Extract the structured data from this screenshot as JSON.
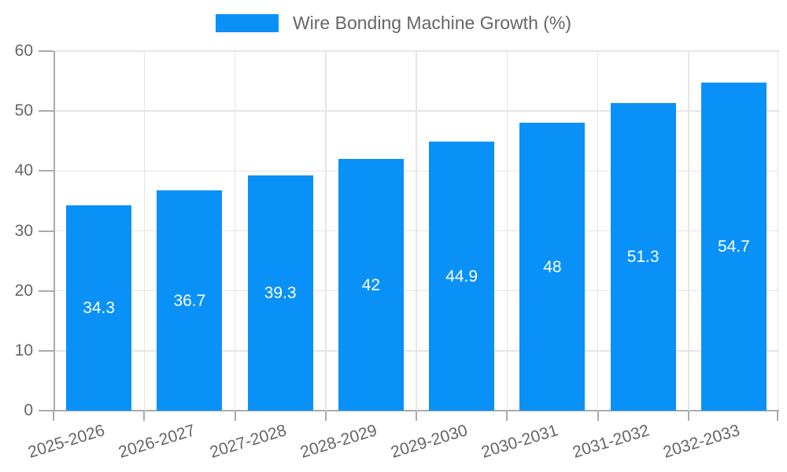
{
  "chart_data": {
    "type": "bar",
    "title": "",
    "categories": [
      "2025-2026",
      "2026-2027",
      "2027-2028",
      "2028-2029",
      "2029-2030",
      "2030-2031",
      "2031-2032",
      "2032-2033"
    ],
    "values": [
      34.3,
      36.7,
      39.3,
      42,
      44.9,
      48,
      51.3,
      54.7
    ],
    "value_labels": [
      "34.3",
      "36.7",
      "39.3",
      "42",
      "44.9",
      "48",
      "51.3",
      "54.7"
    ],
    "series_name": "Wire Bonding Machine Growth (%)",
    "xlabel": "",
    "ylabel": "",
    "ylim": [
      0,
      60
    ],
    "yticks": [
      0,
      10,
      20,
      30,
      40,
      50,
      60
    ],
    "grid": true,
    "legend_position": "top",
    "value_labels_position": "inside-center",
    "colors": {
      "bar": "#0a91f8",
      "value_label": "#ffffff",
      "grid": "#e5e5e5",
      "axis": "#ababab",
      "tick_label": "#666666"
    }
  },
  "legend": {
    "label": "Wire Bonding Machine Growth (%)"
  }
}
